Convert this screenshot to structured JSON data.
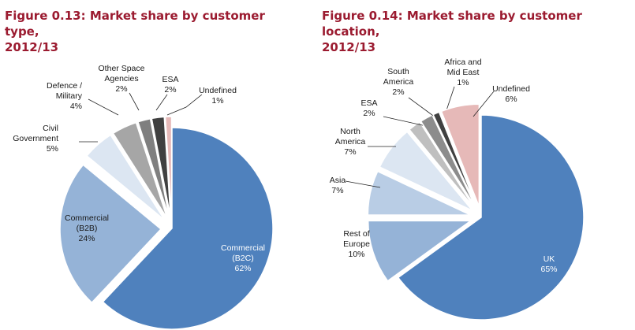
{
  "charts": [
    {
      "title_line1": "Figure 0.13: Market share by customer type,",
      "title_line2": "2012/13"
    },
    {
      "title_line1": "Figure 0.14: Market share by customer location,",
      "title_line2": "2012/13"
    }
  ],
  "chart_data": [
    {
      "type": "pie",
      "title": "Figure 0.13: Market share by customer type, 2012/13",
      "slices": [
        {
          "label": [
            "Commercial",
            "(B2C)",
            "62%"
          ],
          "value": 62,
          "color": "#4f81bd",
          "text_color": "#ffffff"
        },
        {
          "label": [
            "Commercial",
            "(B2B)",
            "24%"
          ],
          "value": 24,
          "color": "#95b3d7",
          "text_color": "#1a1a1a"
        },
        {
          "label": [
            "Civil",
            "Government",
            "5%"
          ],
          "value": 5,
          "color": "#dce6f2",
          "text_color": "#1a1a1a"
        },
        {
          "label": [
            "Defence /",
            "Military",
            "4%"
          ],
          "value": 4,
          "color": "#a6a6a6",
          "text_color": "#1a1a1a"
        },
        {
          "label": [
            "Other Space",
            "Agencies",
            "2%"
          ],
          "value": 2,
          "color": "#7f7f7f",
          "text_color": "#1a1a1a"
        },
        {
          "label": [
            "ESA",
            "2%"
          ],
          "value": 2,
          "color": "#404040",
          "text_color": "#1a1a1a"
        },
        {
          "label": [
            "Undefined",
            "1%"
          ],
          "value": 1,
          "color": "#e6b9b8",
          "text_color": "#1a1a1a"
        }
      ]
    },
    {
      "type": "pie",
      "title": "Figure 0.14: Market share by customer location, 2012/13",
      "slices": [
        {
          "label": [
            "UK",
            "65%"
          ],
          "value": 65,
          "color": "#4f81bd",
          "text_color": "#ffffff"
        },
        {
          "label": [
            "Rest of",
            "Europe",
            "10%"
          ],
          "value": 10,
          "color": "#95b3d7",
          "text_color": "#1a1a1a"
        },
        {
          "label": [
            "Asia",
            "7%"
          ],
          "value": 7,
          "color": "#b9cde5",
          "text_color": "#1a1a1a"
        },
        {
          "label": [
            "North",
            "America",
            "7%"
          ],
          "value": 7,
          "color": "#dce6f2",
          "text_color": "#1a1a1a"
        },
        {
          "label": [
            "ESA",
            "2%"
          ],
          "value": 2,
          "color": "#bfbfbf",
          "text_color": "#1a1a1a"
        },
        {
          "label": [
            "South",
            "America",
            "2%"
          ],
          "value": 2,
          "color": "#8c8c8c",
          "text_color": "#1a1a1a"
        },
        {
          "label": [
            "Africa and",
            "Mid East",
            "1%"
          ],
          "value": 1,
          "color": "#404040",
          "text_color": "#1a1a1a"
        },
        {
          "label": [
            "Undefined",
            "6%"
          ],
          "value": 6,
          "color": "#e6b9b8",
          "text_color": "#1a1a1a"
        }
      ]
    }
  ]
}
